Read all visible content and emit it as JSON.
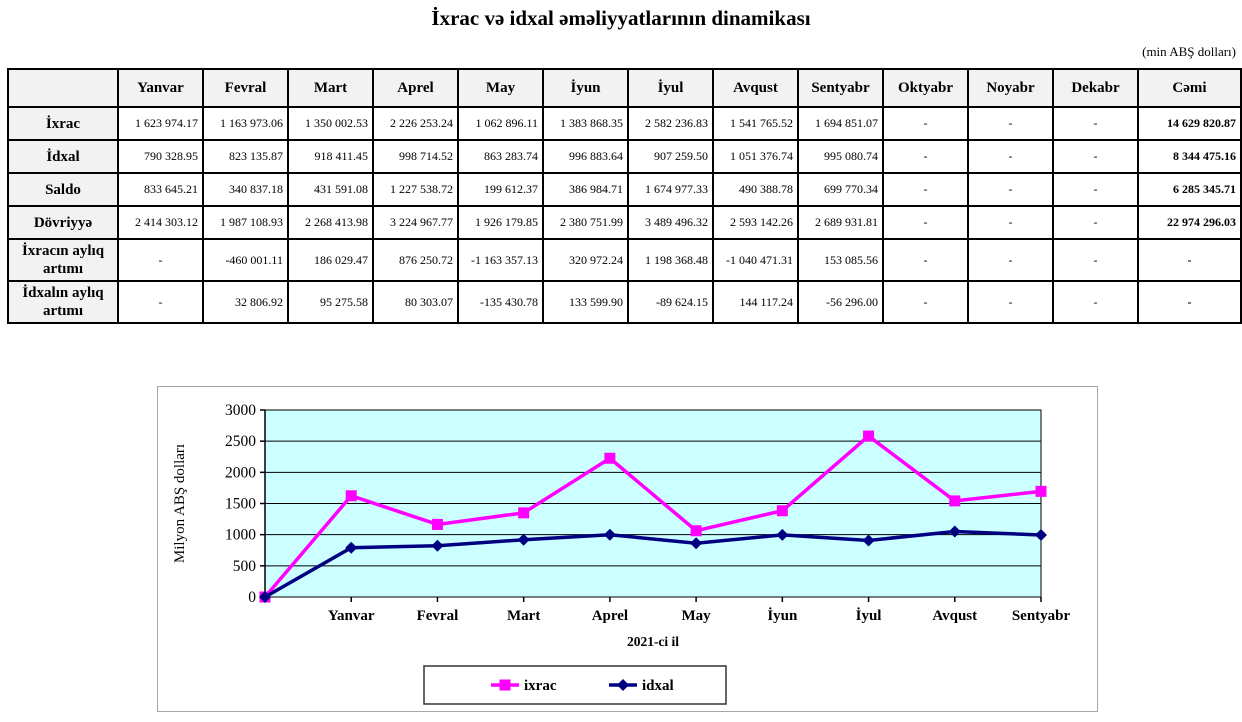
{
  "title": "İxrac və idxal əməliyyatlarının dinamikası",
  "unit_note": "(min ABŞ dolları)",
  "table": {
    "header": [
      "",
      "Yanvar",
      "Fevral",
      "Mart",
      "Aprel",
      "May",
      "İyun",
      "İyul",
      "Avqust",
      "Sentyabr",
      "Oktyabr",
      "Noyabr",
      "Dekabr",
      "Cəmi"
    ],
    "rows": [
      {
        "label": "İxrac",
        "values": [
          "1 623 974.17",
          "1 163 973.06",
          "1 350 002.53",
          "2 226 253.24",
          "1 062 896.11",
          "1 383 868.35",
          "2 582 236.83",
          "1 541 765.52",
          "1 694 851.07",
          "-",
          "-",
          "-",
          "14 629 820.87"
        ]
      },
      {
        "label": "İdxal",
        "values": [
          "790 328.95",
          "823 135.87",
          "918 411.45",
          "998 714.52",
          "863 283.74",
          "996 883.64",
          "907 259.50",
          "1 051 376.74",
          "995 080.74",
          "-",
          "-",
          "-",
          "8 344 475.16"
        ]
      },
      {
        "label": "Saldo",
        "values": [
          "833 645.21",
          "340 837.18",
          "431 591.08",
          "1 227 538.72",
          "199 612.37",
          "386 984.71",
          "1 674 977.33",
          "490 388.78",
          "699 770.34",
          "-",
          "-",
          "-",
          "6 285 345.71"
        ]
      },
      {
        "label": "Dövriyyə",
        "values": [
          "2 414 303.12",
          "1 987 108.93",
          "2 268 413.98",
          "3 224 967.77",
          "1 926 179.85",
          "2 380 751.99",
          "3 489 496.32",
          "2 593 142.26",
          "2 689 931.81",
          "-",
          "-",
          "-",
          "22 974 296.03"
        ]
      },
      {
        "label": "İxracın aylıq artımı",
        "values": [
          "-",
          "-460 001.11",
          "186 029.47",
          "876 250.72",
          "-1 163 357.13",
          "320 972.24",
          "1 198 368.48",
          "-1 040 471.31",
          "153 085.56",
          "-",
          "-",
          "-",
          "-"
        ]
      },
      {
        "label": "İdxalın aylıq artımı",
        "values": [
          "-",
          "32 806.92",
          "95 275.58",
          "80 303.07",
          "-135 430.78",
          "133 599.90",
          "-89 624.15",
          "144 117.24",
          "-56 296.00",
          "-",
          "-",
          "-",
          "-"
        ]
      }
    ]
  },
  "chart_data": {
    "type": "line",
    "x_categories": [
      "",
      "Yanvar",
      "Fevral",
      "Mart",
      "Aprel",
      "May",
      "İyun",
      "İyul",
      "Avqust",
      "Sentyabr"
    ],
    "series": [
      {
        "name": "ixrac",
        "color": "#FF00FF",
        "marker": "square",
        "values": [
          0,
          1623.97,
          1163.97,
          1350.0,
          2226.25,
          1062.9,
          1383.87,
          2582.24,
          1541.77,
          1694.85
        ]
      },
      {
        "name": "idxal",
        "color": "#000080",
        "marker": "diamond",
        "values": [
          0,
          790.33,
          823.14,
          918.41,
          998.71,
          863.28,
          996.88,
          907.26,
          1051.38,
          995.08
        ]
      }
    ],
    "ylabel": "Milyon ABŞ dolları",
    "xlabel": "2021-ci il",
    "ylim": [
      0,
      3000
    ],
    "ytick_step": 500,
    "plot_bg": "#CCFFFF",
    "grid": true,
    "legend_position": "bottom"
  }
}
